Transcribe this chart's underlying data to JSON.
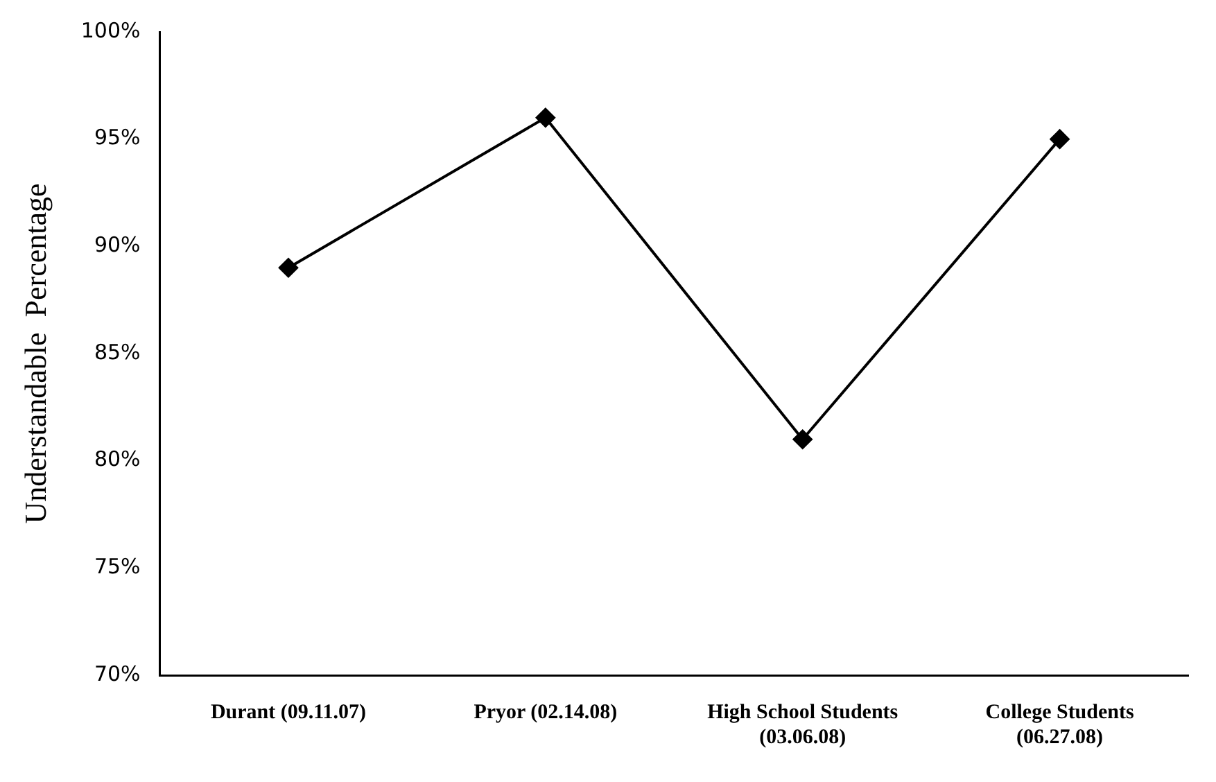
{
  "chart_data": {
    "type": "line",
    "ylabel": "Understandable  Percentage",
    "categories": [
      "Durant (09.11.07)",
      "Pryor (02.14.08)",
      "High School Students (03.06.08)",
      "College Students (06.27.08)"
    ],
    "series": [
      {
        "color": "#000000",
        "values": [
          89,
          96,
          81,
          95
        ]
      }
    ],
    "ylim": [
      70,
      100
    ],
    "yticks": [
      {
        "value": 70,
        "label": "70%"
      },
      {
        "value": 75,
        "label": "75%"
      },
      {
        "value": 80,
        "label": "80%"
      },
      {
        "value": 85,
        "label": "85%"
      },
      {
        "value": 90,
        "label": "90%"
      },
      {
        "value": 95,
        "label": "95%"
      },
      {
        "value": 100,
        "label": "100%"
      }
    ],
    "grid": false,
    "legend": false,
    "marker": "diamond",
    "line_style": "solid"
  }
}
